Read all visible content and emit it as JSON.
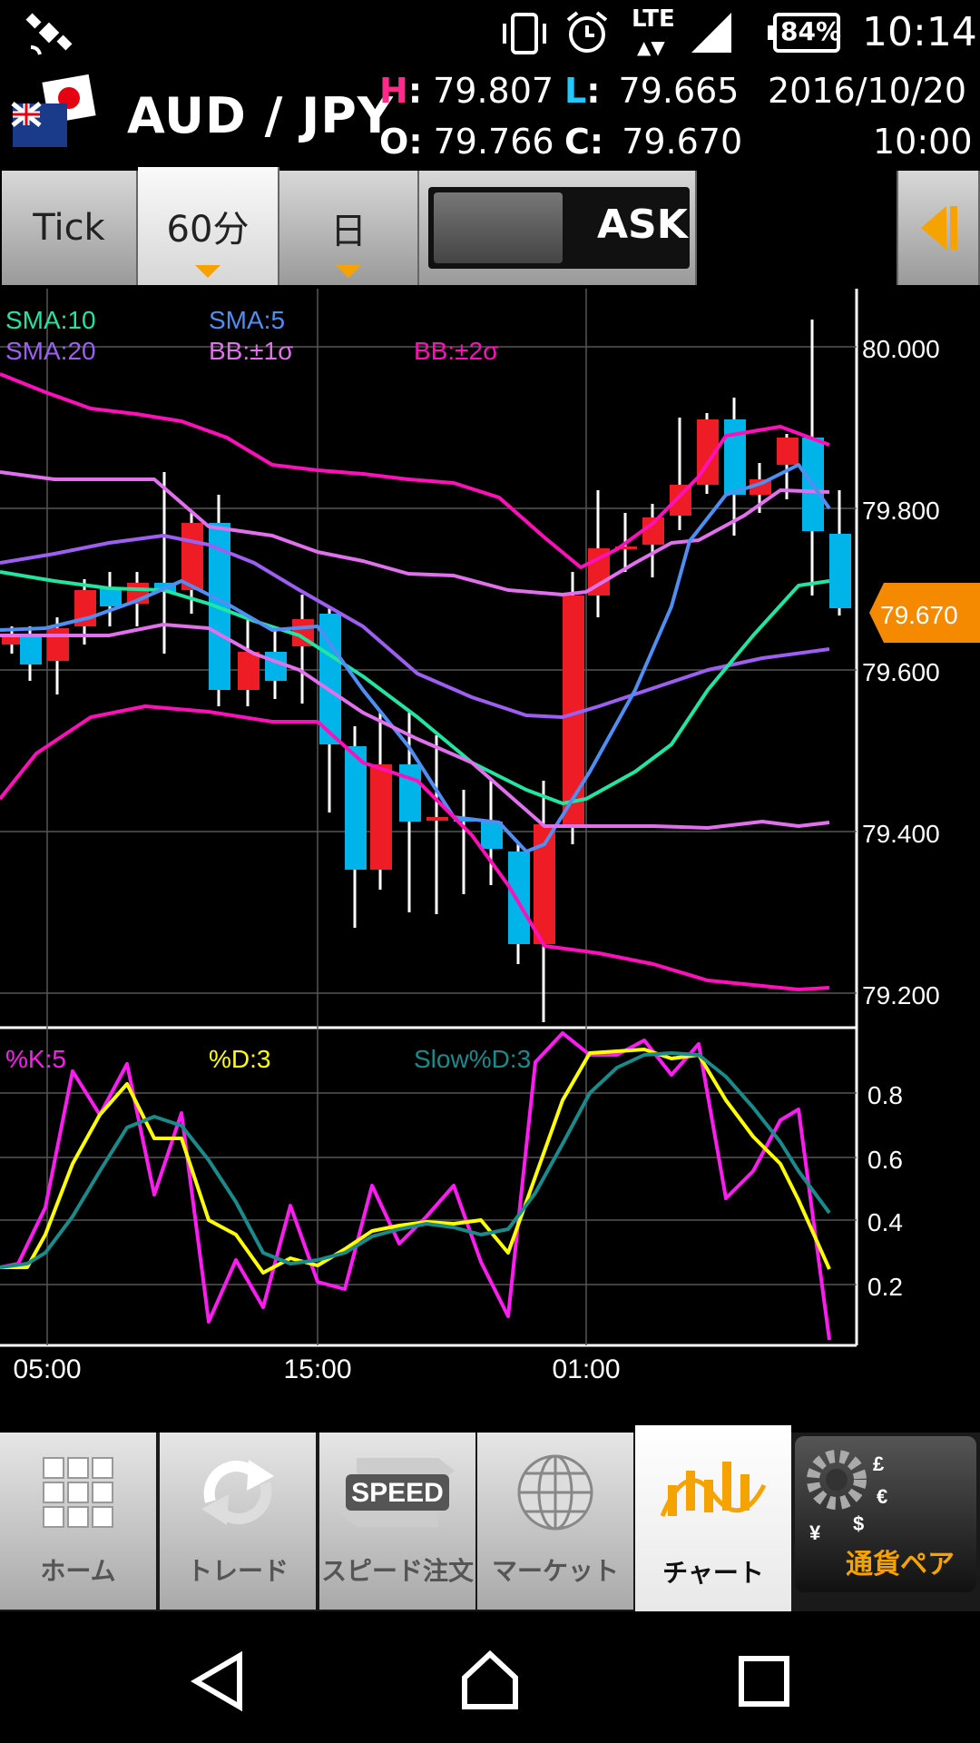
{
  "status_bar": {
    "battery": "84%",
    "network": "LTE",
    "time": "10:14"
  },
  "header": {
    "pair": "AUD / JPY",
    "high_label": "H",
    "high_value": "79.807",
    "low_label": "L",
    "low_value": "79.665",
    "open_label": "O",
    "open_value": "79.766",
    "close_label": "C",
    "close_value": "79.670",
    "date": "2016/10/20",
    "time": "10:00"
  },
  "toolbar": {
    "tick": "Tick",
    "period": "60分",
    "day": "日",
    "ask": "ASK"
  },
  "chart": {
    "price_label": "79.670",
    "indicators": {
      "sma10": "SMA:10",
      "sma5": "SMA:5",
      "sma20": "SMA:20",
      "bb1": "BB:±1σ",
      "bb2": "BB:±2σ"
    },
    "y_ticks": [
      "80.000",
      "79.800",
      "79.600",
      "79.400",
      "79.200"
    ],
    "x_ticks": [
      "05:00",
      "15:00",
      "01:00"
    ],
    "stoch_labels": {
      "k": "%K:5",
      "d": "%D:3",
      "slow": "Slow%D:3"
    },
    "stoch_ticks": [
      "0.8",
      "0.6",
      "0.4",
      "0.2"
    ],
    "colors": {
      "up": "#ee1c24",
      "down": "#00b4ea",
      "sma10": "#22e5a2",
      "sma5": "#4f8ef2",
      "sma20": "#9c5ff0",
      "bb1": "#e070ec",
      "bb2": "#ff10b8",
      "k": "#ff1cf0",
      "d": "#ffff00",
      "slow": "#1a8a8a",
      "price_tag": "#f58a00"
    }
  },
  "nav": {
    "home": "ホーム",
    "trade": "トレード",
    "speed_label": "スピード注文",
    "speed_icon_text": "SPEED",
    "market": "マーケット",
    "chart": "チャート",
    "currency": "通貨ペア"
  }
}
